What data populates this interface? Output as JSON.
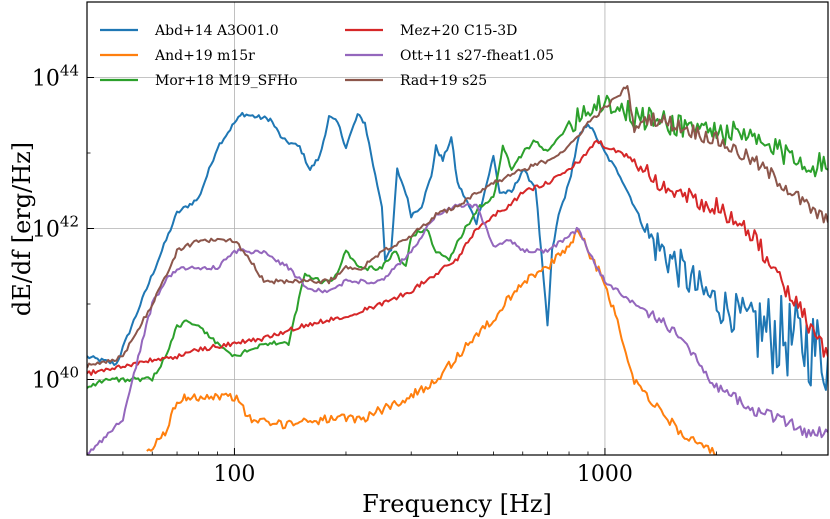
{
  "chart_data": {
    "type": "line",
    "title": "",
    "xlabel": "Frequency [Hz]",
    "ylabel": "dE/df [erg/Hz]",
    "xscale": "log",
    "yscale": "log",
    "xlim": [
      40,
      4000
    ],
    "ylim": [
      1e+39,
      1e+45
    ],
    "grid": true,
    "legend_location": "upper-left",
    "xticks": [
      {
        "value": 100,
        "label": "100"
      },
      {
        "value": 1000,
        "label": "1000"
      }
    ],
    "yticks": [
      {
        "value": 1e+40,
        "base": "10",
        "exp": "40"
      },
      {
        "value": 1e+42,
        "base": "10",
        "exp": "42"
      },
      {
        "value": 1e+44,
        "base": "10",
        "exp": "44"
      }
    ],
    "series": [
      {
        "name": "Abd+14 A3O01.0",
        "color": "#1f77b4",
        "noise_from": 1300,
        "noise_amp": 0.55,
        "noise_amp_hi": 1.1,
        "points": [
          [
            40,
            2e+40
          ],
          [
            48,
            1.6e+40
          ],
          [
            70,
            1.6e+42
          ],
          [
            80,
            2.5e+42
          ],
          [
            90,
            1.2e+43
          ],
          [
            100,
            2.5e+43
          ],
          [
            105,
            3.3e+43
          ],
          [
            115,
            3e+43
          ],
          [
            125,
            2.8e+43
          ],
          [
            135,
            1.5e+43
          ],
          [
            150,
            1.2e+43
          ],
          [
            160,
            6e+42
          ],
          [
            170,
            9e+42
          ],
          [
            180,
            3e+43
          ],
          [
            190,
            2.5e+43
          ],
          [
            200,
            1.2e+43
          ],
          [
            215,
            3.2e+43
          ],
          [
            225,
            2.5e+43
          ],
          [
            240,
            5e+42
          ],
          [
            250,
            2e+42
          ],
          [
            255,
            4e+41
          ],
          [
            265,
            5e+41
          ],
          [
            275,
            6e+42
          ],
          [
            290,
            3e+42
          ],
          [
            300,
            1.5e+42
          ],
          [
            320,
            2e+42
          ],
          [
            340,
            5e+42
          ],
          [
            350,
            1.2e+43
          ],
          [
            365,
            8e+42
          ],
          [
            385,
            1.6e+43
          ],
          [
            400,
            4e+42
          ],
          [
            420,
            2.5e+42
          ],
          [
            450,
            1.2e+42
          ],
          [
            480,
            4e+42
          ],
          [
            500,
            9e+42
          ],
          [
            520,
            3e+42
          ],
          [
            560,
            3e+42
          ],
          [
            600,
            6e+42
          ],
          [
            650,
            3.5e+42
          ],
          [
            700,
            5e+40
          ],
          [
            720,
            5e+41
          ],
          [
            750,
            1.5e+42
          ],
          [
            800,
            4e+42
          ],
          [
            850,
            1.6e+43
          ],
          [
            900,
            2.5e+43
          ],
          [
            950,
            1.6e+43
          ],
          [
            1000,
            1e+43
          ],
          [
            1100,
            5e+42
          ],
          [
            1200,
            2e+42
          ],
          [
            1300,
            8e+41
          ],
          [
            1500,
            4e+41
          ],
          [
            1800,
            1.5e+41
          ],
          [
            2200,
            8e+40
          ],
          [
            2800,
            4e+40
          ],
          [
            3500,
            3e+40
          ],
          [
            4000,
            2e+40
          ]
        ]
      },
      {
        "name": "And+19 m15r",
        "color": "#ff7f0e",
        "noise_from": 0,
        "noise_amp": 0.12,
        "noise_amp_hi": 0.12,
        "points": [
          [
            58,
            1e+39
          ],
          [
            65,
            2e+39
          ],
          [
            70,
            5e+39
          ],
          [
            75,
            6e+39
          ],
          [
            80,
            6e+39
          ],
          [
            100,
            6e+39
          ],
          [
            110,
            3e+39
          ],
          [
            130,
            2.5e+39
          ],
          [
            150,
            2.8e+39
          ],
          [
            180,
            3e+39
          ],
          [
            220,
            3e+39
          ],
          [
            250,
            4e+39
          ],
          [
            300,
            6e+39
          ],
          [
            350,
            1e+40
          ],
          [
            400,
            2e+40
          ],
          [
            450,
            4e+40
          ],
          [
            500,
            6e+40
          ],
          [
            550,
            1.2e+41
          ],
          [
            600,
            2e+41
          ],
          [
            700,
            3e+41
          ],
          [
            800,
            6e+41
          ],
          [
            850,
            1e+42
          ],
          [
            900,
            5e+41
          ],
          [
            1000,
            2e+41
          ],
          [
            1200,
            1e+40
          ],
          [
            1400,
            4e+39
          ],
          [
            1600,
            2e+39
          ],
          [
            2000,
            1e+39
          ]
        ]
      },
      {
        "name": "Mor+18 M19_SFHo",
        "color": "#2ca02c",
        "noise_from": 800,
        "noise_amp": 0.35,
        "noise_amp_hi": 0.35,
        "points": [
          [
            40,
            8e+39
          ],
          [
            45,
            1e+40
          ],
          [
            55,
            1e+40
          ],
          [
            60,
            1e+40
          ],
          [
            65,
            2e+40
          ],
          [
            70,
            5e+40
          ],
          [
            75,
            6e+40
          ],
          [
            80,
            5e+40
          ],
          [
            90,
            3e+40
          ],
          [
            100,
            2e+40
          ],
          [
            120,
            3e+40
          ],
          [
            140,
            3e+40
          ],
          [
            155,
            2.5e+41
          ],
          [
            170,
            2e+41
          ],
          [
            185,
            2e+41
          ],
          [
            200,
            5e+41
          ],
          [
            220,
            3e+41
          ],
          [
            250,
            3e+41
          ],
          [
            270,
            5e+41
          ],
          [
            290,
            3e+41
          ],
          [
            300,
            8e+41
          ],
          [
            330,
            1e+42
          ],
          [
            350,
            5e+41
          ],
          [
            380,
            4e+41
          ],
          [
            420,
            1e+42
          ],
          [
            460,
            2e+42
          ],
          [
            500,
            2.5e+42
          ],
          [
            530,
            1.2e+43
          ],
          [
            560,
            6e+42
          ],
          [
            600,
            1e+43
          ],
          [
            650,
            1.5e+43
          ],
          [
            700,
            1e+43
          ],
          [
            800,
            2.5e+43
          ],
          [
            900,
            4e+43
          ],
          [
            1000,
            5e+43
          ],
          [
            1200,
            3e+43
          ],
          [
            1500,
            2.5e+43
          ],
          [
            2000,
            2e+43
          ],
          [
            2500,
            1.5e+43
          ],
          [
            3000,
            1e+43
          ],
          [
            3500,
            8e+42
          ],
          [
            4000,
            6e+42
          ]
        ]
      },
      {
        "name": "Mez+20 C15-3D",
        "color": "#d62728",
        "noise_from": 1200,
        "noise_amp": 0.25,
        "noise_amp_hi": 0.25,
        "points": [
          [
            40,
            1.2e+40
          ],
          [
            50,
            1.5e+40
          ],
          [
            60,
            1.8e+40
          ],
          [
            70,
            2e+40
          ],
          [
            80,
            2.5e+40
          ],
          [
            100,
            3e+40
          ],
          [
            120,
            3.5e+40
          ],
          [
            150,
            5e+40
          ],
          [
            200,
            7e+40
          ],
          [
            250,
            1e+41
          ],
          [
            300,
            1.5e+41
          ],
          [
            350,
            2.5e+41
          ],
          [
            400,
            4e+41
          ],
          [
            450,
            1e+42
          ],
          [
            500,
            1.5e+42
          ],
          [
            550,
            2e+42
          ],
          [
            600,
            3e+42
          ],
          [
            700,
            4e+42
          ],
          [
            800,
            6e+42
          ],
          [
            900,
            1e+43
          ],
          [
            950,
            1.5e+43
          ],
          [
            1000,
            1.2e+43
          ],
          [
            1100,
            1e+43
          ],
          [
            1200,
            8e+42
          ],
          [
            1300,
            6e+42
          ],
          [
            1500,
            3e+42
          ],
          [
            2000,
            2e+42
          ],
          [
            2500,
            8e+41
          ],
          [
            3000,
            2e+41
          ],
          [
            3500,
            6e+40
          ],
          [
            4000,
            2e+40
          ]
        ]
      },
      {
        "name": "Ott+11 s27-fheat1.05",
        "color": "#9467bd",
        "noise_from": 1300,
        "noise_amp": 0.15,
        "noise_amp_hi": 0.15,
        "points": [
          [
            40,
            1e+39
          ],
          [
            50,
            3e+39
          ],
          [
            55,
            2e+40
          ],
          [
            60,
            1e+41
          ],
          [
            65,
            2e+41
          ],
          [
            70,
            3e+41
          ],
          [
            80,
            3e+41
          ],
          [
            90,
            3e+41
          ],
          [
            100,
            5e+41
          ],
          [
            120,
            5e+41
          ],
          [
            140,
            3e+41
          ],
          [
            160,
            1.5e+41
          ],
          [
            180,
            1.5e+41
          ],
          [
            200,
            2e+41
          ],
          [
            250,
            2e+41
          ],
          [
            280,
            3.5e+41
          ],
          [
            300,
            5e+41
          ],
          [
            350,
            1.5e+42
          ],
          [
            400,
            2e+42
          ],
          [
            450,
            2e+42
          ],
          [
            500,
            6e+41
          ],
          [
            550,
            7e+41
          ],
          [
            600,
            5e+41
          ],
          [
            700,
            5e+41
          ],
          [
            800,
            8e+41
          ],
          [
            850,
            1e+42
          ],
          [
            900,
            5e+41
          ],
          [
            1000,
            2e+41
          ],
          [
            1200,
            1e+41
          ],
          [
            1400,
            6e+40
          ],
          [
            1600,
            4e+40
          ],
          [
            2000,
            8e+39
          ],
          [
            2500,
            4e+39
          ],
          [
            3000,
            3e+39
          ],
          [
            3500,
            2e+39
          ],
          [
            4000,
            2e+39
          ]
        ]
      },
      {
        "name": "Rad+19 s25",
        "color": "#8c564b",
        "noise_from": 1300,
        "noise_amp": 0.2,
        "noise_amp_hi": 0.2,
        "points": [
          [
            40,
            1.5e+40
          ],
          [
            50,
            2e+40
          ],
          [
            60,
            1e+41
          ],
          [
            70,
            5e+41
          ],
          [
            80,
            7e+41
          ],
          [
            100,
            7e+41
          ],
          [
            110,
            4e+41
          ],
          [
            120,
            2e+41
          ],
          [
            140,
            2e+41
          ],
          [
            160,
            2e+41
          ],
          [
            180,
            2e+41
          ],
          [
            200,
            3e+41
          ],
          [
            220,
            3e+41
          ],
          [
            250,
            5e+41
          ],
          [
            300,
            8e+41
          ],
          [
            350,
            1.5e+42
          ],
          [
            400,
            2e+42
          ],
          [
            450,
            3e+42
          ],
          [
            500,
            4e+42
          ],
          [
            600,
            6e+42
          ],
          [
            700,
            8e+42
          ],
          [
            800,
            1.2e+43
          ],
          [
            900,
            2.5e+43
          ],
          [
            1000,
            4e+43
          ],
          [
            1100,
            6e+43
          ],
          [
            1150,
            8e+43
          ],
          [
            1200,
            2e+43
          ],
          [
            1300,
            3e+43
          ],
          [
            1500,
            2.5e+43
          ],
          [
            2000,
            1.5e+43
          ],
          [
            2500,
            8e+42
          ],
          [
            3000,
            4e+42
          ],
          [
            3500,
            2e+42
          ],
          [
            4000,
            1.2e+42
          ]
        ]
      }
    ]
  }
}
